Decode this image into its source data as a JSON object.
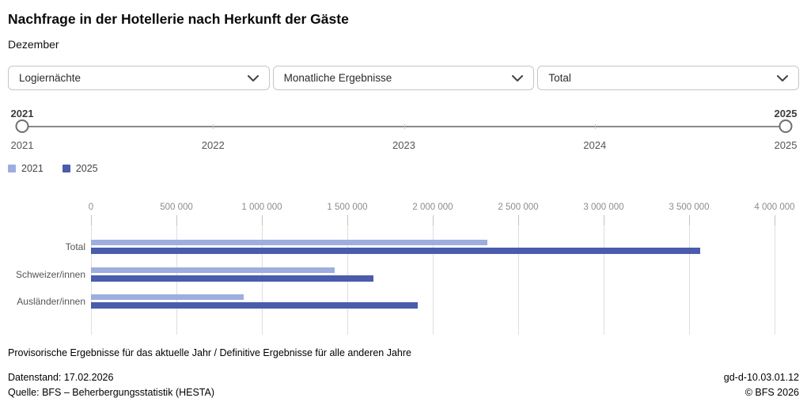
{
  "header": {
    "title": "Nachfrage in der Hotellerie nach Herkunft der Gäste",
    "subtitle": "Dezember"
  },
  "filters": [
    {
      "label": "Logiernächte"
    },
    {
      "label": "Monatliche Ergebnisse"
    },
    {
      "label": "Total"
    }
  ],
  "slider": {
    "start_label": "2021",
    "end_label": "2025",
    "ticks": [
      "2021",
      "2022",
      "2023",
      "2024",
      "2025"
    ]
  },
  "legend": [
    {
      "label": "2021",
      "color": "#9daede"
    },
    {
      "label": "2025",
      "color": "#4a5cac"
    }
  ],
  "chart_data": {
    "type": "bar",
    "orientation": "horizontal",
    "title": "Nachfrage in der Hotellerie nach Herkunft der Gäste",
    "subtitle": "Dezember",
    "categories": [
      "Total",
      "Schweizer/innen",
      "Ausländer/innen"
    ],
    "series": [
      {
        "name": "2021",
        "color": "#9daede",
        "values": [
          2320000,
          1425000,
          895000
        ]
      },
      {
        "name": "2025",
        "color": "#4a5cac",
        "values": [
          3565000,
          1655000,
          1910000
        ]
      }
    ],
    "xlim": [
      0,
      4000000
    ],
    "x_tick_values": [
      0,
      500000,
      1000000,
      1500000,
      2000000,
      2500000,
      3000000,
      3500000,
      4000000
    ],
    "x_tick_labels": [
      "0",
      "500 000",
      "1 000 000",
      "1 500 000",
      "2 000 000",
      "2 500 000",
      "3 000 000",
      "3 500 000",
      "4 000 000"
    ],
    "grid": true,
    "legend_position": "top-left"
  },
  "notes": {
    "provisional": "Provisorische Ergebnisse für das aktuelle Jahr / Definitive Ergebnisse für alle anderen Jahre"
  },
  "footer": {
    "datenstand": "Datenstand: 17.02.2026",
    "quelle": "Quelle: BFS – Beherbergungsstatistik (HESTA)",
    "figure_id": "gd-d-10.03.01.12",
    "copyright": "© BFS 2026"
  }
}
